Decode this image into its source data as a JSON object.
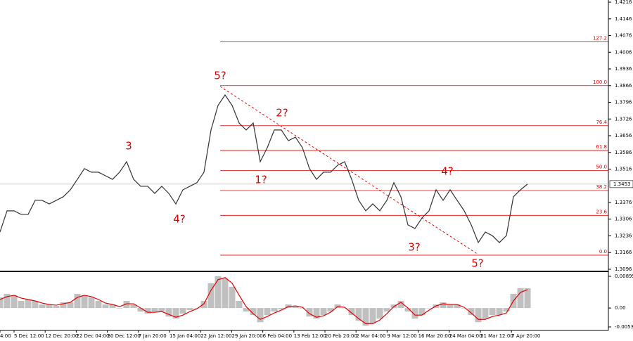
{
  "chart_data": [
    {
      "type": "line",
      "color": "#333333",
      "values": [
        1.3252,
        1.3341,
        1.3341,
        1.3326,
        1.3326,
        1.3385,
        1.3385,
        1.337,
        1.3385,
        1.34,
        1.3429,
        1.3473,
        1.3518,
        1.3503,
        1.3503,
        1.3488,
        1.3473,
        1.3503,
        1.3547,
        1.3473,
        1.3444,
        1.3444,
        1.3414,
        1.3444,
        1.3414,
        1.337,
        1.3429,
        1.3444,
        1.3459,
        1.3503,
        1.368,
        1.3783,
        1.3827,
        1.3783,
        1.3709,
        1.368,
        1.3709,
        1.3547,
        1.3606,
        1.368,
        1.368,
        1.3635,
        1.365,
        1.3606,
        1.3518,
        1.3473,
        1.3503,
        1.3503,
        1.3532,
        1.3547,
        1.3473,
        1.3385,
        1.3341,
        1.337,
        1.3341,
        1.3385,
        1.3459,
        1.34,
        1.3282,
        1.3267,
        1.3311,
        1.3341,
        1.3429,
        1.3385,
        1.3429,
        1.3385,
        1.3341,
        1.3282,
        1.3208,
        1.3252,
        1.3237,
        1.3208,
        1.3237,
        1.34,
        1.3429,
        1.3453
      ],
      "ylim": [
        1.309,
        1.4225
      ],
      "yticks": [
        1.4216,
        1.4146,
        1.4076,
        1.4006,
        1.3936,
        1.3866,
        1.3796,
        1.3726,
        1.3656,
        1.3586,
        1.3516,
        1.3376,
        1.3306,
        1.3236,
        1.3166,
        1.3096
      ],
      "last_price": 1.3453,
      "levels": [
        {
          "label": "127.2",
          "value": 1.405
        },
        {
          "label": "100.0",
          "value": 1.3866
        },
        {
          "label": "76.4",
          "value": 1.3698
        },
        {
          "label": "61.8",
          "value": 1.3594
        },
        {
          "label": "50.0",
          "value": 1.351
        },
        {
          "label": "38.2",
          "value": 1.3426
        },
        {
          "label": "23.6",
          "value": 1.3322
        },
        {
          "label": "0.0",
          "value": 1.3155
        }
      ],
      "annotations": [
        "5?",
        "3",
        "4?",
        "1?",
        "2?",
        "3?",
        "4?",
        "5?"
      ],
      "x_labels": [
        "4:00",
        "5 Dec 12:00",
        "12 Dec 20:00",
        "22 Dec 04:00",
        "30 Dec 12:00",
        "7 Jan 20:00",
        "15 Jan 04:00",
        "22 Jan 12:00",
        "29 Jan 20:00",
        "6 Feb 04:00",
        "13 Feb 12:00",
        "20 Feb 20:00",
        "2 Mar 04:00",
        "9 Mar 12:00",
        "16 Mar 20:00",
        "24 Mar 04:00",
        "31 Mar 12:00",
        "7 Apr 20:00"
      ]
    },
    {
      "type": "bar",
      "ylim": [
        -0.00633,
        0.00974
      ],
      "yticks": [
        0.00895,
        {
          "value": 0,
          "label": "0.00"
        },
        -0.00534
      ],
      "series": [
        {
          "kind": "bar",
          "color": "#c0c0c0",
          "values": [
            0.003,
            0.004,
            0.0036,
            0.002,
            0.0024,
            0.002,
            0.001,
            0.001,
            0.0006,
            0.0016,
            0.0016,
            0.004,
            0.0036,
            0.003,
            0.002,
            0.001,
            0.001,
            0,
            0.002,
            0.001,
            -0.001,
            -0.0016,
            -0.001,
            -0.001,
            -0.0024,
            -0.003,
            -0.0016,
            -0.0006,
            0,
            0.002,
            0.007,
            0.009,
            0.0084,
            0.006,
            0.002,
            -0.001,
            -0.002,
            -0.004,
            -0.002,
            -0.001,
            -0.0004,
            0.001,
            0.0006,
            0,
            -0.0024,
            -0.003,
            -0.002,
            -0.001,
            0.001,
            0,
            -0.002,
            -0.0036,
            -0.005,
            -0.0044,
            -0.003,
            -0.001,
            0.001,
            0.002,
            -0.001,
            -0.003,
            -0.002,
            0,
            0.001,
            0.0016,
            0.001,
            0.001,
            0,
            -0.002,
            -0.004,
            -0.003,
            -0.002,
            -0.002,
            -0.001,
            0.004,
            0.0056,
            0.0056
          ]
        },
        {
          "kind": "line",
          "color": "#e00000",
          "values": [
            0.0024,
            0.0032,
            0.0036,
            0.0028,
            0.0024,
            0.002,
            0.0014,
            0.001,
            0.0008,
            0.0012,
            0.0016,
            0.003,
            0.0036,
            0.0032,
            0.0024,
            0.0014,
            0.001,
            0.0004,
            0.0012,
            0.0012,
            0,
            -0.0012,
            -0.0012,
            -0.001,
            -0.0018,
            -0.0026,
            -0.002,
            -0.001,
            -0.0002,
            0.0012,
            0.005,
            0.008,
            0.0086,
            0.007,
            0.0036,
            0.0004,
            -0.0016,
            -0.0032,
            -0.0024,
            -0.0014,
            -0.0006,
            0.0004,
            0.0006,
            0.0002,
            -0.0016,
            -0.0026,
            -0.0022,
            -0.0012,
            0.0004,
            0.0002,
            -0.0014,
            -0.003,
            -0.0044,
            -0.0044,
            -0.0034,
            -0.0016,
            0.0004,
            0.0016,
            0,
            -0.002,
            -0.002,
            -0.0006,
            0.0006,
            0.0012,
            0.001,
            0.001,
            0.0002,
            -0.0014,
            -0.0032,
            -0.0032,
            -0.0024,
            -0.002,
            -0.0014,
            0.002,
            0.0044,
            0.0052
          ]
        }
      ]
    }
  ]
}
